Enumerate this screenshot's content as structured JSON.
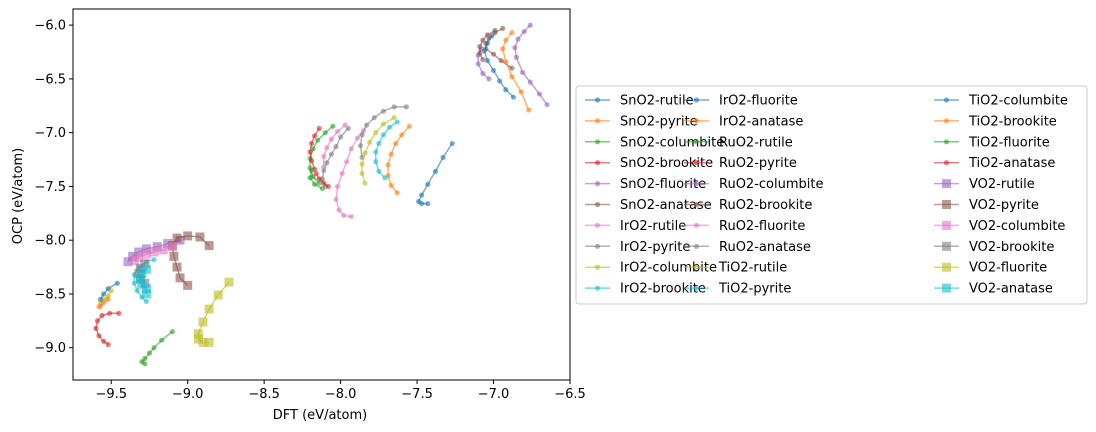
{
  "chart_data": {
    "type": "line",
    "xlabel": "DFT (eV/atom)",
    "ylabel": "OCP (eV/atom)",
    "xlim": [
      -9.75,
      -6.5
    ],
    "ylim": [
      -9.3,
      -5.85
    ],
    "xticks": [
      "-9.5",
      "-9.0",
      "-8.5",
      "-8.0",
      "-7.5",
      "-7.0",
      "-6.5"
    ],
    "yticks": [
      "-6.0",
      "-6.5",
      "-7.0",
      "-7.5",
      "-8.0",
      "-8.5",
      "-9.0"
    ],
    "legend_position": "right",
    "series": [
      {
        "name": "SnO2-rutile",
        "color": "#1f77b4",
        "marker": "circle",
        "points": [
          [
            -7.27,
            -7.1
          ],
          [
            -7.33,
            -7.23
          ],
          [
            -7.38,
            -7.36
          ],
          [
            -7.43,
            -7.48
          ],
          [
            -7.47,
            -7.58
          ],
          [
            -7.49,
            -7.64
          ],
          [
            -7.47,
            -7.66
          ],
          [
            -7.43,
            -7.66
          ]
        ]
      },
      {
        "name": "SnO2-pyrite",
        "color": "#ff7f0e",
        "marker": "circle",
        "points": [
          [
            -7.55,
            -6.94
          ],
          [
            -7.6,
            -7.02
          ],
          [
            -7.64,
            -7.1
          ],
          [
            -7.67,
            -7.2
          ],
          [
            -7.69,
            -7.3
          ],
          [
            -7.69,
            -7.4
          ],
          [
            -7.67,
            -7.49
          ],
          [
            -7.63,
            -7.56
          ]
        ]
      },
      {
        "name": "SnO2-columbite",
        "color": "#2ca02c",
        "marker": "circle",
        "points": [
          [
            -9.1,
            -8.85
          ],
          [
            -9.17,
            -8.93
          ],
          [
            -9.22,
            -9.0
          ],
          [
            -9.25,
            -9.05
          ],
          [
            -9.28,
            -9.1
          ],
          [
            -9.3,
            -9.13
          ],
          [
            -9.28,
            -9.15
          ]
        ]
      },
      {
        "name": "SnO2-brookite",
        "color": "#d62728",
        "marker": "circle",
        "points": [
          [
            -9.45,
            -8.68
          ],
          [
            -9.51,
            -8.68
          ],
          [
            -9.56,
            -8.7
          ],
          [
            -9.59,
            -8.75
          ],
          [
            -9.6,
            -8.82
          ],
          [
            -9.58,
            -8.89
          ],
          [
            -9.55,
            -8.94
          ],
          [
            -9.52,
            -8.97
          ]
        ]
      },
      {
        "name": "SnO2-fluorite",
        "color": "#9467bd",
        "marker": "circle",
        "points": [
          [
            -6.76,
            -6.0
          ],
          [
            -6.8,
            -6.06
          ],
          [
            -6.84,
            -6.13
          ],
          [
            -6.86,
            -6.21
          ],
          [
            -6.85,
            -6.3
          ],
          [
            -6.81,
            -6.44
          ],
          [
            -6.76,
            -6.53
          ],
          [
            -6.7,
            -6.64
          ],
          [
            -6.65,
            -6.74
          ]
        ]
      },
      {
        "name": "SnO2-anatase",
        "color": "#8c564b",
        "marker": "circle",
        "points": [
          [
            -6.94,
            -6.03
          ],
          [
            -6.99,
            -6.07
          ],
          [
            -7.03,
            -6.12
          ],
          [
            -7.05,
            -6.17
          ],
          [
            -7.05,
            -6.22
          ],
          [
            -7.0,
            -6.27
          ],
          [
            -6.95,
            -6.33
          ],
          [
            -6.88,
            -6.4
          ]
        ]
      },
      {
        "name": "IrO2-rutile",
        "color": "#e377c2",
        "marker": "circle",
        "points": [
          [
            -7.85,
            -6.98
          ],
          [
            -7.89,
            -7.05
          ],
          [
            -7.93,
            -7.15
          ],
          [
            -7.96,
            -7.27
          ],
          [
            -7.99,
            -7.38
          ],
          [
            -8.02,
            -7.5
          ],
          [
            -8.03,
            -7.62
          ],
          [
            -8.01,
            -7.72
          ],
          [
            -7.98,
            -7.77
          ],
          [
            -7.93,
            -7.78
          ]
        ]
      },
      {
        "name": "IrO2-pyrite",
        "color": "#7f7f7f",
        "marker": "circle",
        "points": [
          [
            -7.95,
            -6.96
          ],
          [
            -8.0,
            -7.04
          ],
          [
            -8.03,
            -7.13
          ],
          [
            -8.06,
            -7.2
          ],
          [
            -8.09,
            -7.28
          ],
          [
            -8.11,
            -7.35
          ],
          [
            -8.12,
            -7.43
          ],
          [
            -8.1,
            -7.5
          ]
        ]
      },
      {
        "name": "IrO2-columbite",
        "color": "#bcbd22",
        "marker": "circle",
        "points": [
          [
            -9.5,
            -8.47
          ],
          [
            -9.52,
            -8.52
          ],
          [
            -9.55,
            -8.55
          ],
          [
            -9.57,
            -8.58
          ]
        ]
      },
      {
        "name": "IrO2-brookite",
        "color": "#17becf",
        "marker": "circle",
        "points": [
          [
            -9.22,
            -8.18
          ],
          [
            -9.27,
            -8.2
          ],
          [
            -9.32,
            -8.25
          ],
          [
            -9.35,
            -8.32
          ],
          [
            -9.35,
            -8.4
          ],
          [
            -9.33,
            -8.47
          ],
          [
            -9.3,
            -8.53
          ],
          [
            -9.27,
            -8.57
          ]
        ]
      },
      {
        "name": "IrO2-fluorite",
        "color": "#1f77b4",
        "marker": "circle",
        "points": [
          [
            -7.01,
            -6.1
          ],
          [
            -7.04,
            -6.17
          ],
          [
            -7.06,
            -6.24
          ],
          [
            -7.04,
            -6.33
          ],
          [
            -7.0,
            -6.42
          ],
          [
            -6.96,
            -6.52
          ],
          [
            -6.92,
            -6.6
          ],
          [
            -6.87,
            -6.67
          ]
        ]
      },
      {
        "name": "IrO2-anatase",
        "color": "#ff7f0e",
        "marker": "circle",
        "points": [
          [
            -6.88,
            -6.07
          ],
          [
            -6.92,
            -6.14
          ],
          [
            -6.94,
            -6.22
          ],
          [
            -6.92,
            -6.34
          ],
          [
            -6.88,
            -6.48
          ],
          [
            -6.82,
            -6.62
          ],
          [
            -6.77,
            -6.79
          ]
        ]
      },
      {
        "name": "RuO2-rutile",
        "color": "#2ca02c",
        "marker": "circle",
        "points": [
          [
            -8.05,
            -6.94
          ],
          [
            -8.1,
            -7.0
          ],
          [
            -8.15,
            -7.07
          ],
          [
            -8.18,
            -7.15
          ],
          [
            -8.2,
            -7.24
          ],
          [
            -8.2,
            -7.33
          ],
          [
            -8.18,
            -7.41
          ],
          [
            -8.14,
            -7.47
          ]
        ]
      },
      {
        "name": "RuO2-pyrite",
        "color": "#d62728",
        "marker": "circle",
        "points": [
          [
            -8.14,
            -6.96
          ],
          [
            -8.17,
            -7.03
          ],
          [
            -8.19,
            -7.1
          ],
          [
            -8.2,
            -7.18
          ],
          [
            -8.19,
            -7.26
          ],
          [
            -8.17,
            -7.34
          ]
        ]
      },
      {
        "name": "RuO2-columbite",
        "color": "#9467bd",
        "marker": "circle",
        "points": [
          [
            -7.08,
            -6.22
          ],
          [
            -7.1,
            -6.28
          ],
          [
            -7.1,
            -6.36
          ],
          [
            -7.07,
            -6.45
          ],
          [
            -7.03,
            -6.5
          ]
        ]
      },
      {
        "name": "RuO2-brookite",
        "color": "#8c564b",
        "marker": "circle",
        "points": [
          [
            -6.99,
            -6.05
          ],
          [
            -7.04,
            -6.09
          ],
          [
            -7.07,
            -6.14
          ],
          [
            -7.09,
            -6.2
          ],
          [
            -7.09,
            -6.26
          ],
          [
            -7.07,
            -6.32
          ]
        ]
      },
      {
        "name": "RuO2-fluorite",
        "color": "#e377c2",
        "marker": "circle",
        "points": [
          [
            -7.97,
            -6.93
          ],
          [
            -8.02,
            -6.99
          ],
          [
            -8.06,
            -7.06
          ],
          [
            -8.09,
            -7.14
          ],
          [
            -8.11,
            -7.22
          ],
          [
            -8.11,
            -7.32
          ]
        ]
      },
      {
        "name": "RuO2-anatase",
        "color": "#7f7f7f",
        "marker": "circle",
        "points": [
          [
            -7.57,
            -6.76
          ],
          [
            -7.65,
            -6.76
          ],
          [
            -7.72,
            -6.8
          ],
          [
            -7.78,
            -6.86
          ],
          [
            -7.83,
            -6.93
          ],
          [
            -7.86,
            -7.02
          ],
          [
            -7.87,
            -7.12
          ],
          [
            -7.86,
            -7.23
          ]
        ]
      },
      {
        "name": "TiO2-rutile",
        "color": "#bcbd22",
        "marker": "circle",
        "points": [
          [
            -7.65,
            -6.86
          ],
          [
            -7.72,
            -6.92
          ],
          [
            -7.77,
            -7.0
          ],
          [
            -7.81,
            -7.09
          ],
          [
            -7.84,
            -7.19
          ],
          [
            -7.86,
            -7.29
          ],
          [
            -7.86,
            -7.38
          ],
          [
            -7.84,
            -7.47
          ]
        ]
      },
      {
        "name": "TiO2-pyrite",
        "color": "#17becf",
        "marker": "circle",
        "points": [
          [
            -7.63,
            -6.9
          ],
          [
            -7.68,
            -6.95
          ],
          [
            -7.72,
            -7.02
          ],
          [
            -7.75,
            -7.1
          ],
          [
            -7.77,
            -7.18
          ],
          [
            -7.77,
            -7.27
          ],
          [
            -7.75,
            -7.36
          ],
          [
            -7.71,
            -7.42
          ]
        ]
      },
      {
        "name": "TiO2-columbite",
        "color": "#1f77b4",
        "marker": "circle",
        "points": [
          [
            -9.46,
            -8.4
          ],
          [
            -9.52,
            -8.45
          ],
          [
            -9.55,
            -8.5
          ],
          [
            -9.57,
            -8.55
          ]
        ]
      },
      {
        "name": "TiO2-brookite",
        "color": "#ff7f0e",
        "marker": "circle",
        "points": [
          [
            -9.52,
            -8.55
          ],
          [
            -9.55,
            -8.58
          ],
          [
            -9.57,
            -8.61
          ],
          [
            -9.58,
            -8.62
          ]
        ]
      },
      {
        "name": "TiO2-fluorite",
        "color": "#2ca02c",
        "marker": "circle",
        "points": [
          [
            -8.19,
            -7.35
          ],
          [
            -8.2,
            -7.42
          ],
          [
            -8.17,
            -7.48
          ],
          [
            -8.12,
            -7.52
          ]
        ]
      },
      {
        "name": "TiO2-anatase",
        "color": "#d62728",
        "marker": "circle",
        "points": [
          [
            -8.16,
            -7.38
          ],
          [
            -8.14,
            -7.43
          ],
          [
            -8.11,
            -7.47
          ],
          [
            -8.08,
            -7.5
          ]
        ]
      },
      {
        "name": "VO2-rutile",
        "color": "#9467bd",
        "marker": "square",
        "points": [
          [
            -9.05,
            -8.0
          ],
          [
            -9.13,
            -8.03
          ],
          [
            -9.2,
            -8.06
          ],
          [
            -9.27,
            -8.08
          ],
          [
            -9.32,
            -8.11
          ],
          [
            -9.36,
            -8.15
          ],
          [
            -9.39,
            -8.2
          ]
        ]
      },
      {
        "name": "VO2-pyrite",
        "color": "#8c564b",
        "marker": "square",
        "points": [
          [
            -8.86,
            -8.05
          ],
          [
            -8.92,
            -7.97
          ],
          [
            -9.0,
            -7.96
          ],
          [
            -9.07,
            -7.98
          ],
          [
            -9.1,
            -8.05
          ],
          [
            -9.09,
            -8.15
          ],
          [
            -9.07,
            -8.25
          ],
          [
            -9.05,
            -8.35
          ],
          [
            -9.0,
            -8.42
          ]
        ]
      },
      {
        "name": "VO2-columbite",
        "color": "#e377c2",
        "marker": "square",
        "points": [
          [
            -9.1,
            -8.06
          ],
          [
            -9.16,
            -8.09
          ],
          [
            -9.22,
            -8.11
          ],
          [
            -9.27,
            -8.13
          ],
          [
            -9.32,
            -8.16
          ],
          [
            -9.35,
            -8.19
          ]
        ]
      },
      {
        "name": "VO2-brookite",
        "color": "#7f7f7f",
        "marker": "square",
        "points": [
          [
            -9.28,
            -8.22
          ],
          [
            -9.31,
            -8.26
          ],
          [
            -9.32,
            -8.31
          ],
          [
            -9.31,
            -8.36
          ],
          [
            -9.28,
            -8.4
          ]
        ]
      },
      {
        "name": "VO2-fluorite",
        "color": "#bcbd22",
        "marker": "square",
        "points": [
          [
            -8.73,
            -8.39
          ],
          [
            -8.8,
            -8.51
          ],
          [
            -8.86,
            -8.64
          ],
          [
            -8.9,
            -8.76
          ],
          [
            -8.93,
            -8.87
          ],
          [
            -8.93,
            -8.92
          ],
          [
            -8.9,
            -8.95
          ],
          [
            -8.86,
            -8.95
          ]
        ]
      },
      {
        "name": "VO2-anatase",
        "color": "#17becf",
        "marker": "square",
        "points": [
          [
            -9.27,
            -8.27
          ],
          [
            -9.3,
            -8.31
          ],
          [
            -9.31,
            -8.36
          ],
          [
            -9.3,
            -8.41
          ],
          [
            -9.27,
            -8.45
          ],
          [
            -9.27,
            -8.5
          ]
        ]
      }
    ]
  }
}
